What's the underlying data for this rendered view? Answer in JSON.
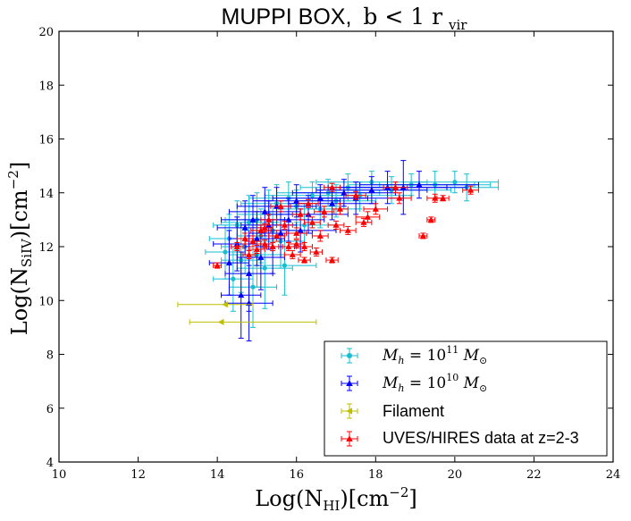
{
  "chart_data": {
    "type": "scatter",
    "title": {
      "prefix": "MUPPI BOX,",
      "math": "b < 1 r",
      "math_sub": "vir"
    },
    "xlabel": {
      "main": "Log(N",
      "sub": "HI",
      "unit": ")[cm",
      "sup": "−2",
      "close": "]"
    },
    "ylabel": {
      "main": "Log(N",
      "sub": "SiIV",
      "unit": ")[cm",
      "sup": "−2",
      "close": "]"
    },
    "xlim": [
      10,
      24
    ],
    "ylim": [
      4,
      20
    ],
    "xticks": [
      10,
      12,
      14,
      16,
      18,
      20,
      22,
      24
    ],
    "yticks": [
      4,
      6,
      8,
      10,
      12,
      14,
      16,
      18,
      20
    ],
    "legend_position": "lower-right",
    "series": [
      {
        "name": "Mh = 10^11 Msun",
        "legend": {
          "base": "M",
          "base_sub": "h",
          "eq": " = 10",
          "exp": "11",
          "unit": " M",
          "unit_sub": "⊙"
        },
        "color": "#17BECF",
        "marker": "circle",
        "points": [
          [
            14.2,
            11.8,
            0.5,
            1.0
          ],
          [
            14.3,
            12.3,
            0.5,
            0.9
          ],
          [
            14.5,
            12.8,
            0.6,
            0.9
          ],
          [
            14.6,
            11.5,
            0.5,
            1.2
          ],
          [
            14.8,
            12.9,
            0.7,
            1.0
          ],
          [
            14.9,
            10.5,
            0.6,
            1.5
          ],
          [
            15.0,
            13.0,
            0.8,
            1.0
          ],
          [
            15.1,
            12.4,
            0.6,
            1.0
          ],
          [
            15.2,
            11.2,
            0.7,
            1.5
          ],
          [
            15.3,
            13.2,
            0.8,
            0.9
          ],
          [
            15.4,
            12.6,
            0.7,
            0.9
          ],
          [
            15.5,
            13.6,
            0.9,
            0.7
          ],
          [
            15.6,
            12.2,
            0.6,
            1.0
          ],
          [
            15.8,
            13.8,
            1.0,
            0.6
          ],
          [
            16.0,
            13.5,
            1.2,
            0.6
          ],
          [
            16.2,
            12.8,
            0.8,
            0.8
          ],
          [
            16.4,
            13.9,
            1.2,
            0.5
          ],
          [
            16.6,
            13.4,
            1.0,
            0.7
          ],
          [
            16.8,
            14.0,
            1.3,
            0.5
          ],
          [
            17.0,
            13.7,
            1.0,
            0.6
          ],
          [
            17.3,
            14.2,
            1.2,
            0.5
          ],
          [
            17.6,
            13.9,
            1.3,
            0.5
          ],
          [
            17.9,
            14.4,
            1.4,
            0.4
          ],
          [
            18.4,
            14.1,
            1.5,
            0.5
          ],
          [
            18.9,
            14.3,
            1.6,
            0.4
          ],
          [
            19.5,
            14.3,
            1.4,
            0.5
          ],
          [
            20.0,
            14.4,
            1.1,
            0.4
          ],
          [
            20.3,
            14.2,
            0.8,
            0.5
          ],
          [
            14.4,
            10.8,
            0.5,
            1.2
          ],
          [
            14.7,
            12.0,
            0.6,
            1.0
          ],
          [
            15.0,
            11.7,
            0.7,
            1.2
          ],
          [
            15.7,
            11.3,
            0.8,
            1.1
          ]
        ]
      },
      {
        "name": "Mh = 10^10 Msun",
        "legend": {
          "base": "M",
          "base_sub": "h",
          "eq": " = 10",
          "exp": "10",
          "unit": " M",
          "unit_sub": "⊙"
        },
        "color": "#0000FF",
        "marker": "triangle",
        "points": [
          [
            14.3,
            11.4,
            0.5,
            1.2
          ],
          [
            14.5,
            12.1,
            0.6,
            1.0
          ],
          [
            14.6,
            10.2,
            0.5,
            1.6
          ],
          [
            14.7,
            12.7,
            0.7,
            1.0
          ],
          [
            14.8,
            11.0,
            0.6,
            1.4
          ],
          [
            14.9,
            13.0,
            0.8,
            0.9
          ],
          [
            15.0,
            12.3,
            0.7,
            1.0
          ],
          [
            15.1,
            11.6,
            0.6,
            1.2
          ],
          [
            15.2,
            13.3,
            0.9,
            0.9
          ],
          [
            15.3,
            12.8,
            0.7,
            0.9
          ],
          [
            15.5,
            13.5,
            1.0,
            0.7
          ],
          [
            15.6,
            12.5,
            0.8,
            0.9
          ],
          [
            15.8,
            13.0,
            0.9,
            0.8
          ],
          [
            16.0,
            13.7,
            1.1,
            0.6
          ],
          [
            16.3,
            13.2,
            1.0,
            0.7
          ],
          [
            16.6,
            13.8,
            1.2,
            0.5
          ],
          [
            16.9,
            13.6,
            1.1,
            0.6
          ],
          [
            17.2,
            14.0,
            1.3,
            0.5
          ],
          [
            17.5,
            13.8,
            1.2,
            0.6
          ],
          [
            17.9,
            14.1,
            1.4,
            0.5
          ],
          [
            18.3,
            14.2,
            1.5,
            0.6
          ],
          [
            18.7,
            14.2,
            1.6,
            1.0
          ],
          [
            19.1,
            14.3,
            1.5,
            0.5
          ],
          [
            14.8,
            9.9,
            0.6,
            1.4
          ],
          [
            15.4,
            12.0,
            0.7,
            1.0
          ],
          [
            16.1,
            12.6,
            0.9,
            0.8
          ]
        ]
      },
      {
        "name": "Filament",
        "legend_text": "Filament",
        "color": "#BFBF00",
        "marker": "left-triangle",
        "points": [
          [
            14.2,
            9.85,
            1.2,
            0.0
          ],
          [
            14.1,
            9.2,
            0.9,
            0.0
          ]
        ],
        "xerr_asym": [
          [
            1.2,
            0.7
          ],
          [
            0.8,
            2.4
          ]
        ]
      },
      {
        "name": "UVES/HIRES data at z=2-3",
        "legend_text": "UVES/HIRES data at z=2-3",
        "color": "#FF0000",
        "marker": "triangle",
        "points": [
          [
            14.0,
            11.3,
            0.1,
            0.1
          ],
          [
            14.5,
            12.0,
            0.15,
            0.15
          ],
          [
            14.7,
            12.3,
            0.2,
            0.2
          ],
          [
            14.8,
            11.7,
            0.15,
            0.15
          ],
          [
            14.9,
            12.2,
            0.2,
            0.2
          ],
          [
            15.0,
            11.9,
            0.2,
            0.15
          ],
          [
            15.1,
            12.6,
            0.25,
            0.2
          ],
          [
            15.2,
            12.1,
            0.2,
            0.15
          ],
          [
            15.3,
            13.0,
            0.2,
            0.2
          ],
          [
            15.4,
            12.0,
            0.15,
            0.15
          ],
          [
            15.5,
            12.4,
            0.2,
            0.2
          ],
          [
            15.6,
            13.5,
            0.25,
            0.2
          ],
          [
            15.7,
            12.8,
            0.2,
            0.15
          ],
          [
            15.8,
            12.0,
            0.15,
            0.15
          ],
          [
            15.9,
            11.7,
            0.2,
            0.15
          ],
          [
            16.0,
            12.5,
            0.25,
            0.2
          ],
          [
            16.1,
            13.2,
            0.2,
            0.2
          ],
          [
            16.2,
            12.0,
            0.2,
            0.15
          ],
          [
            16.3,
            13.6,
            0.25,
            0.15
          ],
          [
            16.4,
            12.9,
            0.2,
            0.2
          ],
          [
            16.5,
            11.8,
            0.15,
            0.15
          ],
          [
            16.6,
            12.4,
            0.2,
            0.2
          ],
          [
            16.7,
            13.3,
            0.25,
            0.2
          ],
          [
            16.9,
            14.2,
            0.2,
            0.15
          ],
          [
            17.0,
            12.8,
            0.2,
            0.15
          ],
          [
            17.1,
            13.4,
            0.2,
            0.2
          ],
          [
            17.3,
            12.6,
            0.2,
            0.15
          ],
          [
            17.5,
            13.9,
            0.25,
            0.15
          ],
          [
            17.7,
            12.9,
            0.2,
            0.15
          ],
          [
            17.8,
            13.1,
            0.3,
            0.2
          ],
          [
            18.0,
            13.4,
            0.3,
            0.2
          ],
          [
            18.5,
            14.2,
            0.3,
            0.2
          ],
          [
            18.6,
            13.8,
            0.3,
            0.2
          ],
          [
            19.2,
            12.4,
            0.1,
            0.1
          ],
          [
            19.4,
            13.0,
            0.1,
            0.1
          ],
          [
            19.5,
            13.8,
            0.2,
            0.15
          ],
          [
            19.7,
            13.8,
            0.15,
            0.1
          ],
          [
            20.4,
            14.1,
            0.2,
            0.15
          ],
          [
            16.2,
            11.5,
            0.15,
            0.1
          ],
          [
            16.9,
            11.5,
            0.15,
            0.1
          ],
          [
            15.2,
            12.7,
            0.2,
            0.15
          ],
          [
            16.0,
            12.1,
            0.2,
            0.15
          ]
        ]
      }
    ]
  }
}
